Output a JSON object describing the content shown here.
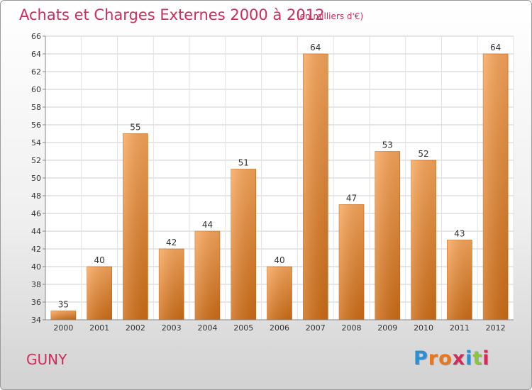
{
  "header": {
    "title": "Achats et Charges Externes 2000 à 2012",
    "subtitle": "(en milliers d'€)"
  },
  "footer": {
    "commune": "GUNY",
    "logo": {
      "text": "Proxiti",
      "letter_colors": [
        "#2b8fd6",
        "#e8771e",
        "#e8771e",
        "#d42a5a",
        "#2b8fd6",
        "#8cc63e",
        "#d42a5a"
      ]
    }
  },
  "chart_data": {
    "type": "bar",
    "title": "Achats et Charges Externes 2000 à 2012",
    "subtitle": "(en milliers d'€)",
    "categories": [
      "2000",
      "2001",
      "2002",
      "2003",
      "2004",
      "2005",
      "2006",
      "2007",
      "2008",
      "2009",
      "2010",
      "2011",
      "2012"
    ],
    "values": [
      35,
      40,
      55,
      42,
      44,
      51,
      40,
      64,
      47,
      53,
      52,
      43,
      64
    ],
    "ylim": [
      34,
      66
    ],
    "yticks": [
      34,
      36,
      38,
      40,
      42,
      44,
      46,
      48,
      50,
      52,
      54,
      56,
      58,
      60,
      62,
      64,
      66
    ],
    "grid": true,
    "bar_color": "#f0882a",
    "data_labels": true
  }
}
